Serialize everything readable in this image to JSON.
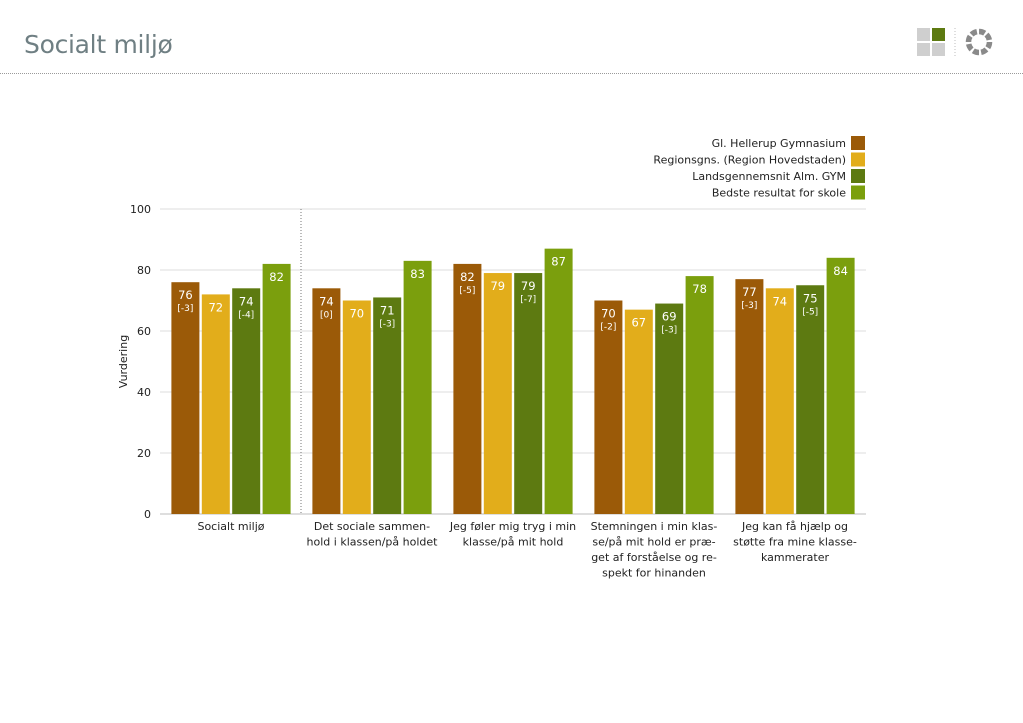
{
  "page": {
    "title": "Socialt miljø"
  },
  "logo": {
    "icon": "logo-squares-icon",
    "ring_icon": "logo-ring-icon"
  },
  "chart_data": {
    "type": "bar",
    "ylabel": "Vurdering",
    "ylim": [
      0,
      100
    ],
    "yticks": [
      0,
      20,
      40,
      60,
      80,
      100
    ],
    "grid": true,
    "legend_position": "top-right",
    "categories": [
      [
        "Socialt miljø"
      ],
      [
        "Det sociale sammen-",
        "hold i klassen/på holdet"
      ],
      [
        "Jeg føler mig tryg i min",
        "klasse/på mit hold"
      ],
      [
        "Stemningen i min klas-",
        "se/på mit hold er præ-",
        "get af forståelse og re-",
        "spekt for hinanden"
      ],
      [
        "Jeg kan få hjælp og",
        "støtte fra mine klasse-",
        "kammerater"
      ]
    ],
    "series": [
      {
        "name": "Gl. Hellerup Gymnasium",
        "color": "#9b5a08",
        "values": [
          76,
          74,
          82,
          70,
          77
        ],
        "diffs": [
          "[-3]",
          "[0]",
          "[-5]",
          "[-2]",
          "[-3]"
        ]
      },
      {
        "name": "Regionsgns. (Region Hovedstaden)",
        "color": "#e2ad1b",
        "values": [
          72,
          70,
          79,
          67,
          74
        ],
        "diffs": [
          "",
          "",
          "",
          "",
          ""
        ]
      },
      {
        "name": "Landsgennemsnit Alm. GYM",
        "color": "#5d7a11",
        "values": [
          74,
          71,
          79,
          69,
          75
        ],
        "diffs": [
          "[-4]",
          "[-3]",
          "[-7]",
          "[-3]",
          "[-5]"
        ]
      },
      {
        "name": "Bedste resultat for skole",
        "color": "#7b9f0d",
        "values": [
          82,
          83,
          87,
          78,
          84
        ],
        "diffs": [
          "",
          "",
          "",
          "",
          ""
        ]
      }
    ]
  }
}
